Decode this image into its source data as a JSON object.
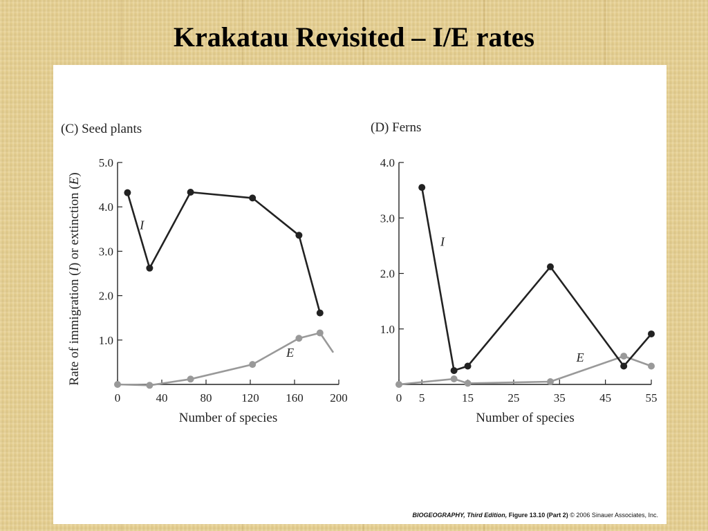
{
  "slide": {
    "title": "Krakatau Revisited – I/E rates"
  },
  "credit": {
    "book": "BIOGEOGRAPHY, Third Edition,",
    "figure": "Figure 13.10 (Part 2)",
    "copyright": "© 2006 Sinauer Associates, Inc."
  },
  "colors": {
    "immigration": "#222222",
    "extinction": "#999999"
  },
  "chart_data": [
    {
      "type": "line",
      "panel_label": "(C)  Seed plants",
      "xlabel": "Number of species",
      "ylabel_parts": [
        "Rate of immigration (",
        "I",
        ") or extinction (",
        "E",
        ")"
      ],
      "xlim": [
        0,
        200
      ],
      "ylim": [
        0,
        5.0
      ],
      "xticks": [
        0,
        40,
        80,
        120,
        160,
        200
      ],
      "yticks": [
        1.0,
        2.0,
        3.0,
        4.0,
        5.0
      ],
      "xtick_labels": [
        "0",
        "40",
        "80",
        "120",
        "160",
        "200"
      ],
      "ytick_labels": [
        "1.0",
        "2.0",
        "3.0",
        "4.0",
        "5.0"
      ],
      "series": [
        {
          "name": "I",
          "marker": true,
          "x": [
            9,
            29,
            66,
            122,
            164,
            183
          ],
          "y": [
            4.32,
            2.62,
            4.33,
            4.2,
            3.36,
            1.61
          ]
        },
        {
          "name": "E",
          "marker": true,
          "x": [
            0,
            29,
            66,
            122,
            164,
            183
          ],
          "y": [
            0.0,
            -0.02,
            0.12,
            0.45,
            1.04,
            1.16
          ]
        },
        {
          "name": "",
          "marker": false,
          "x": [
            183,
            195
          ],
          "y": [
            1.16,
            0.72
          ]
        }
      ],
      "series_labels": [
        {
          "text": "I",
          "x": 22,
          "y": 3.5
        },
        {
          "text": "E",
          "x": 156,
          "y": 0.62
        }
      ]
    },
    {
      "type": "line",
      "panel_label": "(D)  Ferns",
      "xlabel": "Number of species",
      "ylabel_parts": [],
      "xlim": [
        0,
        55
      ],
      "ylim": [
        0,
        4.0
      ],
      "xticks": [
        0,
        5,
        15,
        25,
        35,
        45,
        55
      ],
      "yticks": [
        1.0,
        2.0,
        3.0,
        4.0
      ],
      "xtick_labels": [
        "0",
        "5",
        "15",
        "25",
        "35",
        "45",
        "55"
      ],
      "ytick_labels": [
        "1.0",
        "2.0",
        "3.0",
        "4.0"
      ],
      "series": [
        {
          "name": "I",
          "marker": true,
          "x": [
            5,
            12,
            15,
            33,
            49,
            55
          ],
          "y": [
            3.55,
            0.25,
            0.33,
            2.12,
            0.33,
            0.91
          ]
        },
        {
          "name": "E",
          "marker": true,
          "x": [
            0,
            12,
            15,
            33,
            49,
            55
          ],
          "y": [
            0.0,
            0.1,
            0.02,
            0.05,
            0.51,
            0.33
          ]
        }
      ],
      "series_labels": [
        {
          "text": "I",
          "x": 9.5,
          "y": 2.5
        },
        {
          "text": "E",
          "x": 39.5,
          "y": 0.41
        }
      ]
    }
  ]
}
